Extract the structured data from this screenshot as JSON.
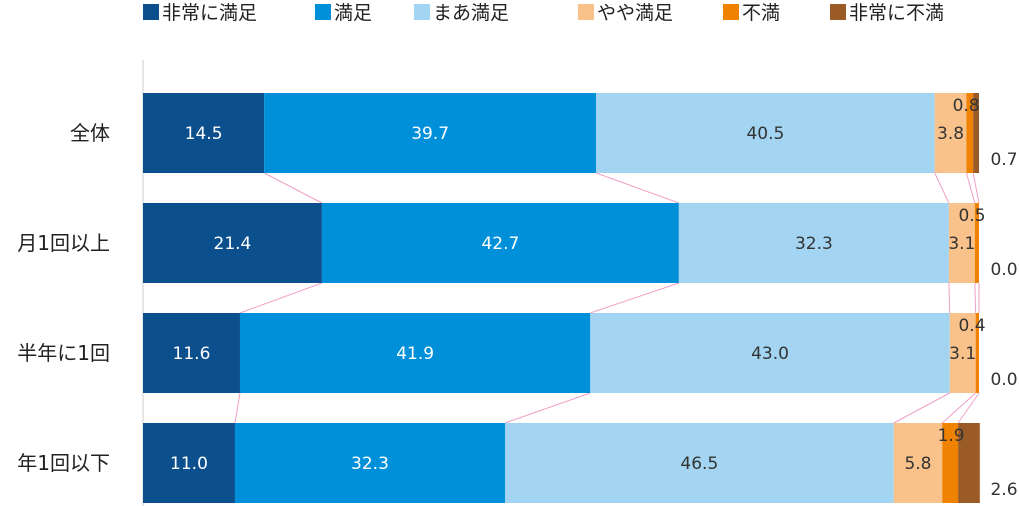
{
  "chart_data": {
    "type": "bar",
    "orientation": "horizontal",
    "stacked": true,
    "normalized_percent": true,
    "title": "",
    "xlabel": "",
    "ylabel": "",
    "xlim": [
      0,
      100
    ],
    "grid": false,
    "legend_position": "top",
    "categories": [
      "全体",
      "月1回以上",
      "半年に1回",
      "年1回以下"
    ],
    "series": [
      {
        "name": "非常に満足",
        "color": "#0b4f8c",
        "label_color": "#ffffff",
        "values": [
          14.5,
          21.4,
          11.6,
          11.0
        ]
      },
      {
        "name": "満足",
        "color": "#0090da",
        "label_color": "#ffffff",
        "values": [
          39.7,
          42.7,
          41.9,
          32.3
        ]
      },
      {
        "name": "まあ満足",
        "color": "#a3d4f2",
        "label_color": "#333333",
        "values": [
          40.5,
          32.3,
          43.0,
          46.5
        ]
      },
      {
        "name": "やや満足",
        "color": "#f9c28b",
        "label_color": "#333333",
        "values": [
          3.8,
          3.1,
          3.1,
          5.8
        ]
      },
      {
        "name": "不満",
        "color": "#ef8200",
        "label_color": "#333333",
        "values": [
          0.8,
          0.5,
          0.4,
          1.9
        ]
      },
      {
        "name": "非常に不満",
        "color": "#9b5b26",
        "label_color": "#333333",
        "values": [
          0.7,
          0.0,
          0.0,
          2.6
        ]
      }
    ],
    "value_labels": {
      "inside": [
        [
          "14.5",
          "39.7",
          "40.5",
          "3.8"
        ],
        [
          "21.4",
          "42.7",
          "32.3",
          "3.1"
        ],
        [
          "11.6",
          "41.9",
          "43.0",
          "3.1"
        ],
        [
          "11.0",
          "32.3",
          "46.5",
          "5.8"
        ]
      ],
      "above_right": [
        "0.8",
        "0.5",
        "0.4",
        "1.9"
      ],
      "right": [
        "0.7",
        "0.0",
        "0.0",
        "2.6"
      ]
    },
    "connector_lines": true
  }
}
